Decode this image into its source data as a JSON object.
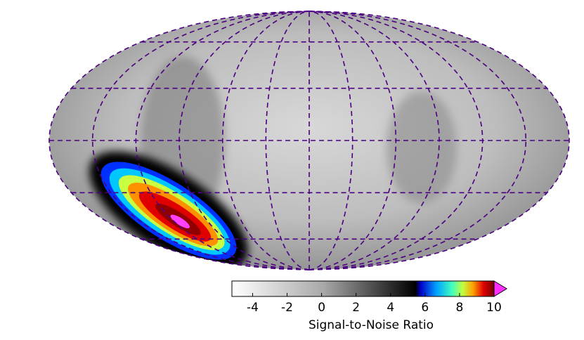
{
  "chart_data": {
    "type": "skymap",
    "projection": "mollweide",
    "colorbar": {
      "label": "Signal-to-Noise Ratio",
      "xlim": [
        -5.2,
        10
      ],
      "xticks": [
        -4,
        -2,
        0,
        2,
        4,
        6,
        8,
        10
      ],
      "extend": "max"
    },
    "graticule_color": "#4b0082"
  }
}
